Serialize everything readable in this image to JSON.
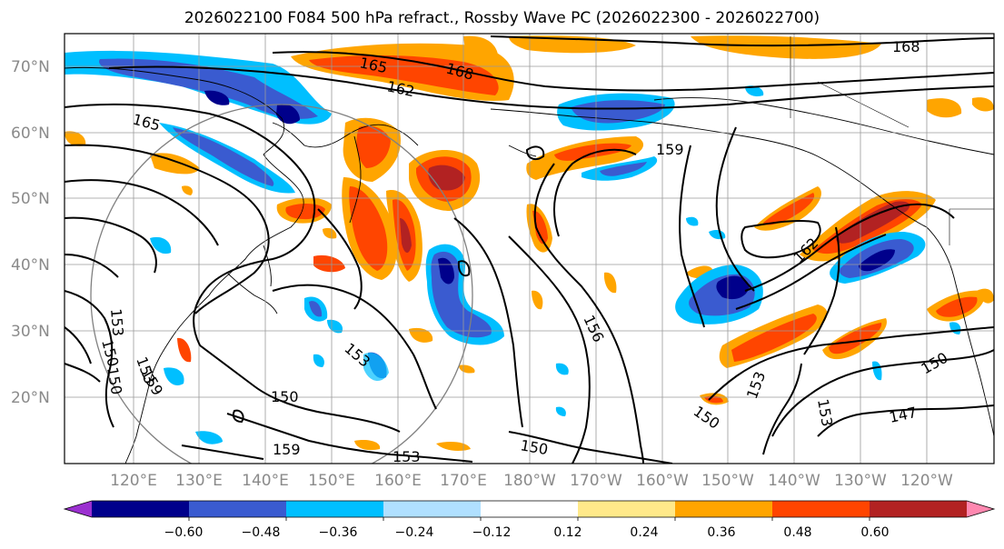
{
  "header": {
    "title": "2026022100 F084 500 hPa refract., Rossby Wave PC (2026022300 - 2026022700)"
  },
  "map": {
    "lat_labels": [
      "70°N",
      "60°N",
      "50°N",
      "40°N",
      "30°N",
      "20°N"
    ],
    "lon_labels": [
      "120°E",
      "130°E",
      "140°E",
      "150°E",
      "160°E",
      "170°E",
      "180°W",
      "170°W",
      "160°W",
      "150°W",
      "140°W",
      "130°W",
      "120°W"
    ],
    "contour_labels": [
      "168",
      "165",
      "168",
      "162",
      "165",
      "159",
      "162",
      "156",
      "153",
      "153",
      "150",
      "159",
      "150",
      "153",
      "159",
      "150",
      "150",
      "153",
      "153",
      "150",
      "147",
      "153",
      "150"
    ]
  },
  "colorbar": {
    "tick_labels": [
      "−0.60",
      "−0.48",
      "−0.36",
      "−0.24",
      "−0.12",
      "0.12",
      "0.24",
      "0.36",
      "0.48",
      "0.60"
    ],
    "colors": [
      "#9b30d0",
      "#00008b",
      "#3a5bd0",
      "#00bfff",
      "#b0e0ff",
      "#ffffff",
      "#ffe98a",
      "#ffa500",
      "#ff4500",
      "#b22222",
      "#ff88b0"
    ]
  },
  "colors": {
    "pos_weak": "#ffe98a",
    "pos_mid": "#ffa500",
    "pos_strong": "#ff4500",
    "pos_max": "#b22222",
    "neg_weak": "#b0e0ff",
    "neg_mid": "#00bfff",
    "neg_strong": "#3a5bd0",
    "neg_max": "#00008b"
  }
}
